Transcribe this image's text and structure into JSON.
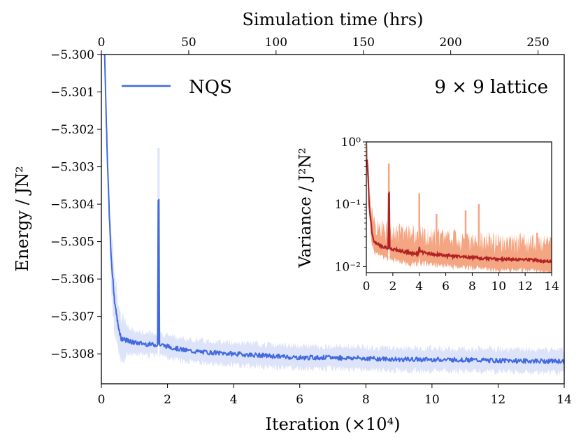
{
  "chart_data": [
    {
      "type": "line",
      "name": "main",
      "title": "",
      "xlabel": "Iteration (×10⁴)",
      "ylabel": "Energy / JN²",
      "x2label": "Simulation time (hrs)",
      "xlim": [
        0,
        14
      ],
      "ylim": [
        -5.3088,
        -5.3
      ],
      "x2lim": [
        0,
        265
      ],
      "xticks": [
        0,
        2,
        4,
        6,
        8,
        10,
        12,
        14
      ],
      "xtick_labels": [
        "0",
        "2",
        "4",
        "6",
        "8",
        "10",
        "12",
        "14"
      ],
      "x2ticks": [
        0,
        50,
        100,
        150,
        200,
        250
      ],
      "x2tick_labels": [
        "0",
        "50",
        "100",
        "150",
        "200",
        "250"
      ],
      "yticks": [
        -5.3,
        -5.301,
        -5.302,
        -5.303,
        -5.304,
        -5.305,
        -5.306,
        -5.307,
        -5.308
      ],
      "ytick_labels": [
        "−5.300",
        "−5.301",
        "−5.302",
        "−5.303",
        "−5.304",
        "−5.305",
        "−5.306",
        "−5.307",
        "−5.308"
      ],
      "annotation": "9 × 9 lattice",
      "legend": {
        "entries": [
          "NQS"
        ],
        "placement": "top-left"
      },
      "colors": {
        "line": "#4169e1",
        "band": "#dde3f8"
      },
      "series": [
        {
          "name": "NQS",
          "x": [
            0.1,
            0.15,
            0.2,
            0.25,
            0.3,
            0.4,
            0.5,
            0.6,
            0.8,
            1.0,
            1.2,
            1.5,
            1.7,
            1.73,
            1.75,
            2.0,
            2.5,
            3.0,
            4.0,
            5.0,
            6.0,
            7.0,
            8.0,
            9.0,
            10.0,
            11.0,
            12.0,
            13.0,
            14.0
          ],
          "values": [
            -5.3,
            -5.3018,
            -5.3033,
            -5.3045,
            -5.3055,
            -5.3066,
            -5.3072,
            -5.3076,
            -5.30765,
            -5.3077,
            -5.30772,
            -5.30775,
            -5.30775,
            -5.3039,
            -5.30775,
            -5.3078,
            -5.3079,
            -5.30795,
            -5.308,
            -5.30805,
            -5.3081,
            -5.3081,
            -5.30812,
            -5.30815,
            -5.30815,
            -5.30816,
            -5.30818,
            -5.30819,
            -5.3082
          ],
          "band_halfwidth": [
            0.0,
            0.0003,
            0.0005,
            0.0007,
            0.0008,
            0.0008,
            0.0007,
            0.0006,
            0.0004,
            0.0003,
            0.0003,
            0.0003,
            0.0003,
            0.0012,
            0.0003,
            0.0003,
            0.0003,
            0.0003,
            0.0003,
            0.0003,
            0.0003,
            0.0003,
            0.0003,
            0.0003,
            0.0003,
            0.0003,
            0.0003,
            0.0003,
            0.0003
          ]
        }
      ]
    },
    {
      "type": "line",
      "name": "inset",
      "xlabel": "",
      "ylabel": "Variance / J²N²",
      "yscale": "log",
      "xlim": [
        0,
        14
      ],
      "ylim": [
        0.008,
        1.0
      ],
      "xticks": [
        0,
        2,
        4,
        6,
        8,
        10,
        12,
        14
      ],
      "xtick_labels": [
        "0",
        "2",
        "4",
        "6",
        "8",
        "10",
        "12",
        "14"
      ],
      "yticks": [
        0.01,
        0.1,
        1.0
      ],
      "ytick_labels": [
        "10⁻²",
        "10⁻¹",
        "10⁰"
      ],
      "colors": {
        "mean": "#b22222",
        "spread": "#f4a582"
      },
      "series": [
        {
          "name": "variance",
          "x": [
            0.05,
            0.2,
            0.4,
            0.6,
            1.0,
            1.5,
            1.7,
            1.72,
            1.75,
            2.0,
            3.0,
            3.95,
            4.0,
            4.05,
            5.0,
            6.0,
            8.0,
            10.0,
            12.0,
            14.0
          ],
          "values": [
            0.5,
            0.1,
            0.035,
            0.025,
            0.022,
            0.02,
            0.02,
            0.15,
            0.02,
            0.019,
            0.017,
            0.016,
            0.022,
            0.017,
            0.016,
            0.015,
            0.014,
            0.013,
            0.013,
            0.012
          ],
          "spikes": [
            {
              "x": 1.7,
              "value": 0.45
            },
            {
              "x": 4.0,
              "value": 0.15
            },
            {
              "x": 5.3,
              "value": 0.07
            },
            {
              "x": 7.5,
              "value": 0.08
            },
            {
              "x": 8.5,
              "value": 0.1
            },
            {
              "x": 12.9,
              "value": 0.035
            }
          ]
        }
      ]
    }
  ]
}
